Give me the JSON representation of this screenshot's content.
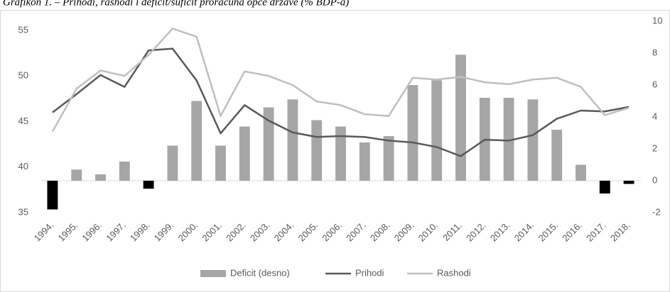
{
  "chart_data": {
    "type": "bar_line",
    "title": "Grafikon 1. – Prihodi, rashodi i deficit/suficit proračuna opće države (% BDP-a)",
    "categories": [
      "1994.",
      "1995.",
      "1996.",
      "1997.",
      "1998.",
      "1999.",
      "2000.",
      "2001.",
      "2002.",
      "2003.",
      "2004.",
      "2005.",
      "2006.",
      "2007.",
      "2008.",
      "2009.",
      "2010.",
      "2011.",
      "2012.",
      "2013.",
      "2014.",
      "2015.",
      "2016.",
      "2017.",
      "2018."
    ],
    "series": [
      {
        "name": "Deficit (desno)",
        "type": "bar",
        "axis": "y2",
        "color": "#a6a6a6",
        "negative_color": "#000000",
        "values": [
          -1.8,
          0.7,
          0.4,
          1.2,
          -0.5,
          2.2,
          5.0,
          2.2,
          3.4,
          4.6,
          5.1,
          3.8,
          3.4,
          2.4,
          2.8,
          6.0,
          6.3,
          7.9,
          5.2,
          5.2,
          5.1,
          3.2,
          1.0,
          -0.8,
          -0.2
        ]
      },
      {
        "name": "Prihodi",
        "type": "line",
        "color": "#595959",
        "values": [
          46.0,
          48.0,
          50.1,
          48.8,
          52.8,
          53.0,
          49.5,
          43.7,
          46.8,
          45.1,
          43.8,
          43.3,
          43.4,
          43.3,
          42.9,
          42.7,
          42.2,
          41.2,
          43.0,
          42.9,
          43.5,
          45.3,
          46.2,
          46.1,
          46.6
        ]
      },
      {
        "name": "Rashodi",
        "type": "line",
        "color": "#bfbfbf",
        "values": [
          43.9,
          48.6,
          50.6,
          50.0,
          52.3,
          55.2,
          54.3,
          45.6,
          50.5,
          50.0,
          49.0,
          47.2,
          46.8,
          45.8,
          45.6,
          49.8,
          49.6,
          49.9,
          49.3,
          49.1,
          49.6,
          49.8,
          48.8,
          45.7,
          46.5
        ]
      }
    ],
    "ylim": [
      35,
      56
    ],
    "yticks": [
      35,
      40,
      45,
      50,
      55
    ],
    "y2lim": [
      -2,
      10
    ],
    "y2ticks": [
      -2,
      0,
      2,
      4,
      6,
      8,
      10
    ],
    "legend": "bottom"
  }
}
